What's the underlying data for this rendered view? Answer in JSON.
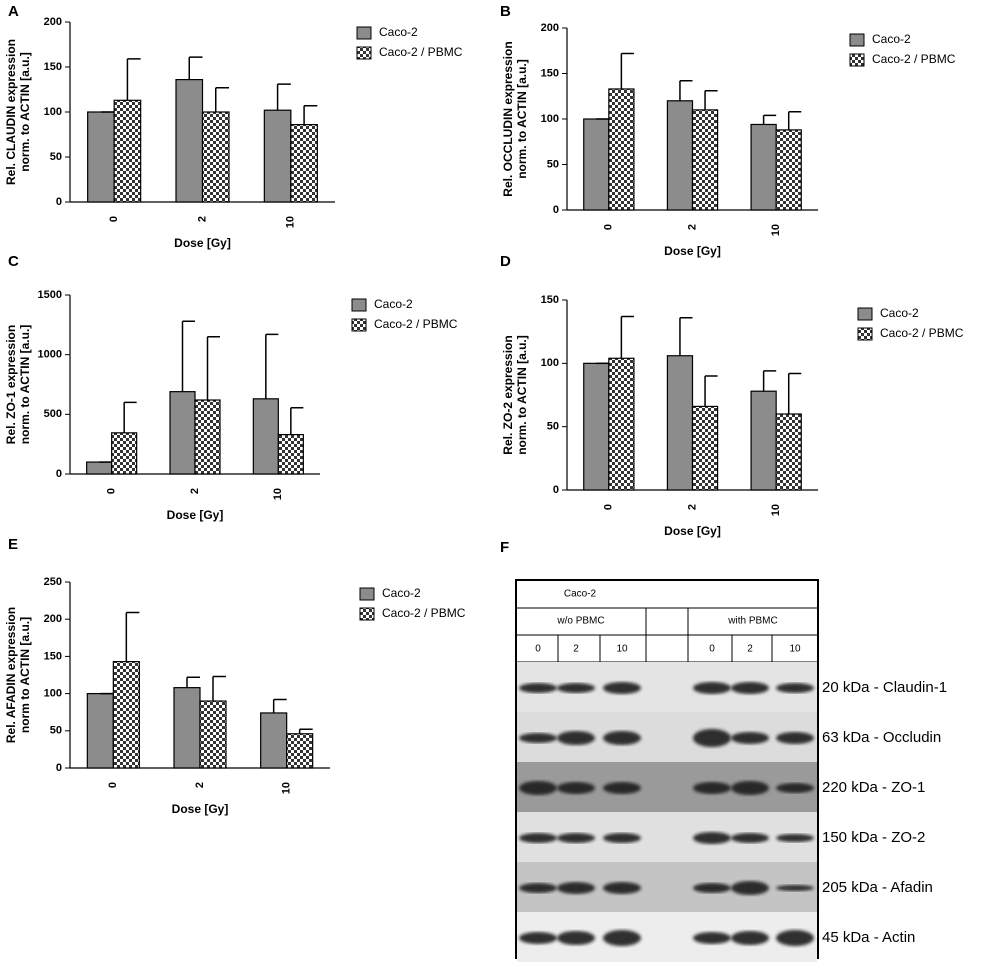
{
  "chart_data": [
    {
      "type": "bar",
      "panel": "A",
      "ylabel": [
        "Rel. CLAUDIN expression",
        "norm. to ACTIN [a.u.]"
      ],
      "xlabel": "Dose [Gy]",
      "categories": [
        "0",
        "2",
        "10"
      ],
      "ylim": [
        0,
        200
      ],
      "yticks": [
        0,
        50,
        100,
        150,
        200
      ],
      "series": [
        {
          "name": "Caco-2",
          "color": "#8c8c8c",
          "hatch": "none",
          "values": [
            100,
            136,
            102
          ],
          "errors": [
            0,
            25,
            29
          ]
        },
        {
          "name": "Caco-2 / PBMC",
          "color": "#3a3a3a",
          "hatch": "checker",
          "values": [
            113,
            100,
            86
          ],
          "errors": [
            46,
            27,
            21
          ]
        }
      ]
    },
    {
      "type": "bar",
      "panel": "B",
      "ylabel": [
        "Rel. OCCLUDIN expression",
        "norm. to ACTIN [a.u.]"
      ],
      "xlabel": "Dose [Gy]",
      "categories": [
        "0",
        "2",
        "10"
      ],
      "ylim": [
        0,
        200
      ],
      "yticks": [
        0,
        50,
        100,
        150,
        200
      ],
      "series": [
        {
          "name": "Caco-2",
          "color": "#8c8c8c",
          "hatch": "none",
          "values": [
            100,
            120,
            94
          ],
          "errors": [
            0,
            22,
            10
          ]
        },
        {
          "name": "Caco-2 / PBMC",
          "color": "#3a3a3a",
          "hatch": "checker",
          "values": [
            133,
            110,
            88
          ],
          "errors": [
            39,
            21,
            20
          ]
        }
      ]
    },
    {
      "type": "bar",
      "panel": "C",
      "ylabel": [
        "Rel. ZO-1 expression",
        "norm. to ACTIN [a.u.]"
      ],
      "xlabel": "Dose [Gy]",
      "categories": [
        "0",
        "2",
        "10"
      ],
      "ylim": [
        0,
        1500
      ],
      "yticks": [
        0,
        500,
        1000,
        1500
      ],
      "series": [
        {
          "name": "Caco-2",
          "color": "#8c8c8c",
          "hatch": "none",
          "values": [
            100,
            690,
            630
          ],
          "errors": [
            0,
            590,
            540
          ]
        },
        {
          "name": "Caco-2 / PBMC",
          "color": "#3a3a3a",
          "hatch": "checker",
          "values": [
            345,
            620,
            330
          ],
          "errors": [
            255,
            530,
            225
          ]
        }
      ]
    },
    {
      "type": "bar",
      "panel": "D",
      "ylabel": [
        "Rel. ZO-2 expression",
        "norm. to ACTIN [a.u.]"
      ],
      "xlabel": "Dose [Gy]",
      "categories": [
        "0",
        "2",
        "10"
      ],
      "ylim": [
        0,
        150
      ],
      "yticks": [
        0,
        50,
        100,
        150
      ],
      "series": [
        {
          "name": "Caco-2",
          "color": "#8c8c8c",
          "hatch": "none",
          "values": [
            100,
            106,
            78
          ],
          "errors": [
            0,
            30,
            16
          ]
        },
        {
          "name": "Caco-2 / PBMC",
          "color": "#3a3a3a",
          "hatch": "checker",
          "values": [
            104,
            66,
            60
          ],
          "errors": [
            33,
            24,
            32
          ]
        }
      ]
    },
    {
      "type": "bar",
      "panel": "E",
      "ylabel": [
        "Rel. AFADIN expression",
        "norm to ACTIN [a.u.]"
      ],
      "xlabel": "Dose [Gy]",
      "categories": [
        "0",
        "2",
        "10"
      ],
      "ylim": [
        0,
        250
      ],
      "yticks": [
        0,
        50,
        100,
        150,
        200,
        250
      ],
      "series": [
        {
          "name": "Caco-2",
          "color": "#8c8c8c",
          "hatch": "none",
          "values": [
            100,
            108,
            74
          ],
          "errors": [
            0,
            14,
            18
          ]
        },
        {
          "name": "Caco-2 / PBMC",
          "color": "#3a3a3a",
          "hatch": "checker",
          "values": [
            143,
            90,
            46
          ],
          "errors": [
            66,
            33,
            6
          ]
        }
      ]
    }
  ],
  "blot": {
    "panel": "F",
    "title": "Caco-2",
    "groups": [
      "w/o PBMC",
      "with PBMC"
    ],
    "lanes": [
      "0",
      "2",
      "10",
      "0",
      "2",
      "10"
    ],
    "bands": [
      "20 kDa - Claudin-1",
      "63 kDa -  Occludin",
      "220 kDa - ZO-1",
      "150 kDa - ZO-2",
      "205 kDa - Afadin",
      "45 kDa - Actin"
    ]
  }
}
